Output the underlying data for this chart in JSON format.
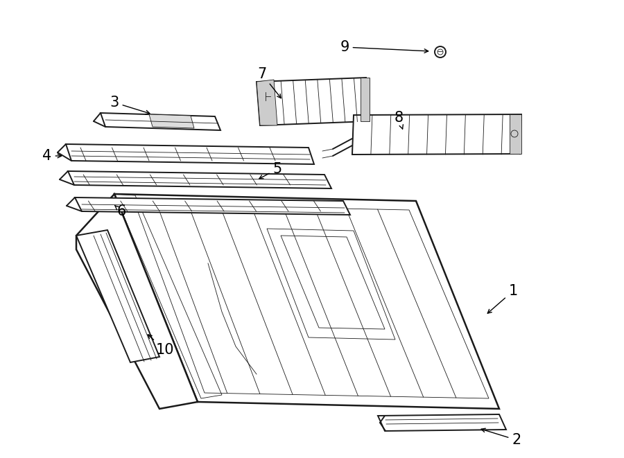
{
  "bg_color": "#ffffff",
  "line_color": "#1a1a1a",
  "fig_width": 9.0,
  "fig_height": 6.61,
  "dpi": 100,
  "lw_main": 1.4,
  "lw_thin": 0.6,
  "lw_thick": 1.8
}
